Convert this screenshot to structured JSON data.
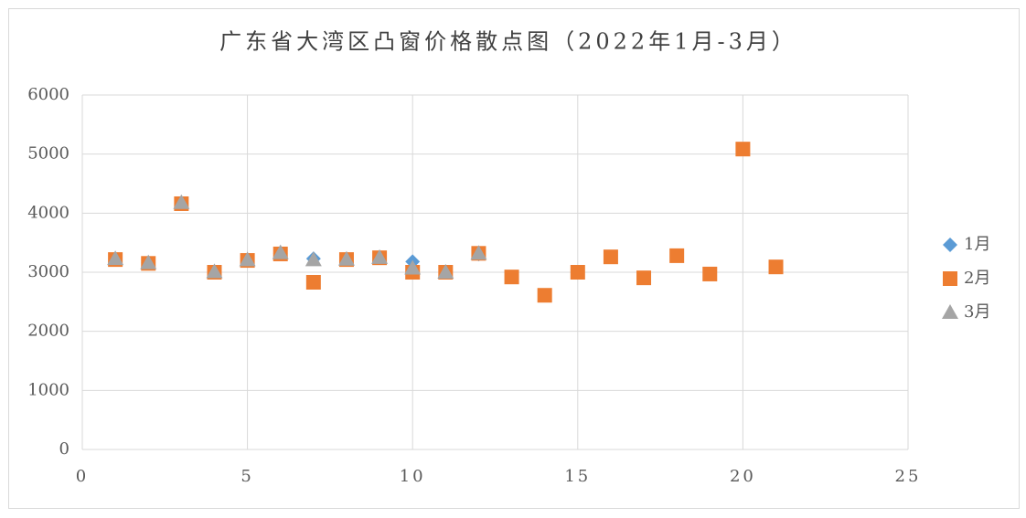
{
  "chart_data": {
    "type": "scatter",
    "title": "广东省大湾区凸窗价格散点图（2022年1月-3月）",
    "xlim": [
      0,
      25
    ],
    "xticks": [
      0,
      5,
      10,
      15,
      20,
      25
    ],
    "ylim": [
      0,
      6000
    ],
    "yticks": [
      0,
      1000,
      2000,
      3000,
      4000,
      5000,
      6000
    ],
    "grid": true,
    "legend": "right",
    "series": [
      {
        "name": "1月",
        "color": "#5b9bd5",
        "marker": "diamond",
        "x": [
          1,
          2,
          3,
          4,
          5,
          6,
          7,
          8,
          9,
          10,
          11,
          12
        ],
        "values": [
          3220,
          3160,
          4170,
          3010,
          3200,
          3320,
          3230,
          3220,
          3250,
          3180,
          3010,
          3310
        ]
      },
      {
        "name": "2月",
        "color": "#ed7d31",
        "marker": "square",
        "x": [
          1,
          2,
          3,
          4,
          5,
          6,
          7,
          8,
          9,
          10,
          11,
          12,
          13,
          14,
          15,
          16,
          17,
          18,
          19,
          20,
          21
        ],
        "values": [
          3215,
          3150,
          4160,
          3000,
          3200,
          3310,
          2830,
          3215,
          3245,
          3000,
          3000,
          3320,
          2920,
          2610,
          3000,
          3260,
          2905,
          3280,
          2970,
          5085,
          3090
        ]
      },
      {
        "name": "3月",
        "color": "#a5a5a5",
        "marker": "triangle",
        "x": [
          1,
          2,
          3,
          4,
          5,
          6,
          7,
          8,
          9,
          10,
          11,
          12
        ],
        "values": [
          3230,
          3160,
          4180,
          3010,
          3210,
          3330,
          3210,
          3220,
          3250,
          3070,
          3000,
          3320
        ]
      }
    ]
  }
}
